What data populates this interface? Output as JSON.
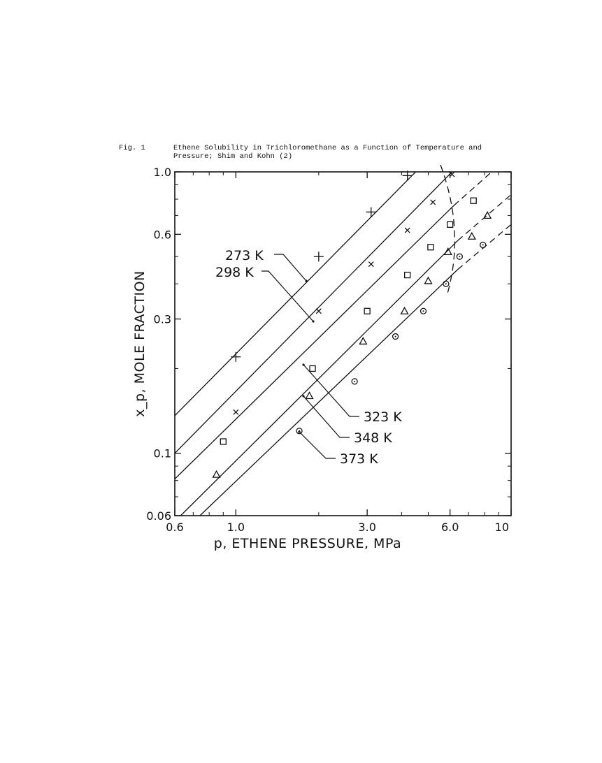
{
  "caption": {
    "number": "Fig. 1",
    "text": "Ethene Solubility in Trichloromethane as a Function of Temperature and Pressure; Shim and Kohn (2)"
  },
  "chart_data": {
    "type": "scatter",
    "xlabel": "p, ETHENE PRESSURE, MPa",
    "ylabel": "x_p, MOLE FRACTION",
    "xscale": "log",
    "yscale": "log",
    "xlim": [
      0.6,
      10
    ],
    "ylim": [
      0.06,
      1.0
    ],
    "xticks": [
      {
        "value": 0.6,
        "label": "0.6"
      },
      {
        "value": 1.0,
        "label": "1.0"
      },
      {
        "value": 3.0,
        "label": "3.0"
      },
      {
        "value": 6.0,
        "label": "6.0"
      },
      {
        "value": 10,
        "label": "10"
      }
    ],
    "yticks": [
      {
        "value": 0.06,
        "label": "0.06"
      },
      {
        "value": 0.1,
        "label": "0.1"
      },
      {
        "value": 0.3,
        "label": "0.3"
      },
      {
        "value": 0.6,
        "label": "0.6"
      },
      {
        "value": 1.0,
        "label": "1.0"
      }
    ],
    "series": [
      {
        "name": "273 K",
        "marker": "plus",
        "points": [
          [
            1.0,
            0.22
          ],
          [
            2.0,
            0.5
          ],
          [
            3.1,
            0.72
          ],
          [
            4.2,
            0.97
          ]
        ],
        "line": [
          [
            0.6,
            0.136
          ],
          [
            4.5,
            1.0
          ]
        ]
      },
      {
        "name": "298 K",
        "marker": "x",
        "points": [
          [
            1.0,
            0.14
          ],
          [
            2.0,
            0.32
          ],
          [
            3.1,
            0.47
          ],
          [
            4.2,
            0.62
          ],
          [
            5.2,
            0.78
          ],
          [
            6.1,
            0.98
          ]
        ],
        "line": [
          [
            0.6,
            0.1
          ],
          [
            6.1,
            1.0
          ]
        ]
      },
      {
        "name": "323 K",
        "marker": "square",
        "points": [
          [
            0.9,
            0.11
          ],
          [
            1.9,
            0.2
          ],
          [
            3.0,
            0.32
          ],
          [
            4.2,
            0.43
          ],
          [
            5.1,
            0.54
          ],
          [
            6.0,
            0.65
          ],
          [
            7.3,
            0.79
          ]
        ],
        "line": [
          [
            0.6,
            0.081
          ],
          [
            6.2,
            0.76
          ]
        ],
        "extrapolated": [
          [
            6.2,
            0.76
          ],
          [
            8.5,
            1.0
          ]
        ]
      },
      {
        "name": "348 K",
        "marker": "triangle",
        "points": [
          [
            0.85,
            0.084
          ],
          [
            1.85,
            0.16
          ],
          [
            2.9,
            0.25
          ],
          [
            4.1,
            0.32
          ],
          [
            5.0,
            0.41
          ],
          [
            5.9,
            0.52
          ],
          [
            7.2,
            0.59
          ],
          [
            8.2,
            0.7
          ]
        ],
        "line": [
          [
            0.63,
            0.06
          ],
          [
            6.4,
            0.57
          ]
        ],
        "extrapolated": [
          [
            6.4,
            0.57
          ],
          [
            10,
            0.83
          ]
        ]
      },
      {
        "name": "373 K",
        "marker": "circle",
        "points": [
          [
            1.7,
            0.12
          ],
          [
            2.7,
            0.18
          ],
          [
            3.8,
            0.26
          ],
          [
            4.8,
            0.32
          ],
          [
            5.8,
            0.4
          ],
          [
            6.5,
            0.5
          ],
          [
            7.9,
            0.55
          ]
        ],
        "line": [
          [
            0.74,
            0.06
          ],
          [
            6.4,
            0.45
          ]
        ],
        "extrapolated": [
          [
            6.4,
            0.45
          ],
          [
            10,
            0.65
          ]
        ]
      }
    ],
    "annotations": [
      {
        "label": "273 K",
        "target": "273 K"
      },
      {
        "label": "298 K",
        "target": "298 K"
      },
      {
        "label": "323 K",
        "target": "323 K"
      },
      {
        "label": "348 K",
        "target": "348 K"
      },
      {
        "label": "373 K",
        "target": "373 K"
      }
    ],
    "boundary": "critical curve (dashed)"
  }
}
